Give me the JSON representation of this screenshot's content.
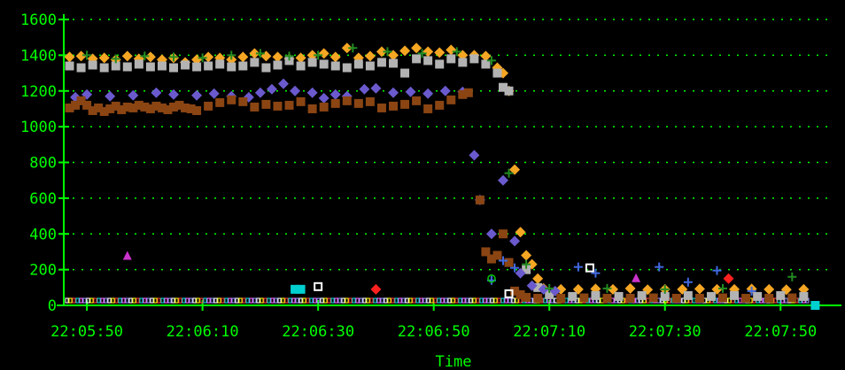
{
  "chart_data": {
    "type": "scatter",
    "title": "",
    "xlabel": "Time",
    "ylabel": "",
    "grid": true,
    "legend": "none",
    "colors": {
      "background": "#000000",
      "axis": "#00ff00",
      "grid": "#00ff00"
    },
    "ylim": [
      0,
      1600
    ],
    "yticks": [
      0,
      200,
      400,
      600,
      800,
      1000,
      1200,
      1400,
      1600
    ],
    "xlim": [
      "22:05:46",
      "22:07:59"
    ],
    "xticks": [
      "22:05:50",
      "22:06:10",
      "22:06:30",
      "22:06:50",
      "22:07:10",
      "22:07:30",
      "22:07:50"
    ],
    "series": [
      {
        "marker": "diamond",
        "color": "#f5a623",
        "points": [
          [
            "22:05:47",
            1390
          ],
          [
            "22:05:49",
            1395
          ],
          [
            "22:05:51",
            1380
          ],
          [
            "22:05:53",
            1385
          ],
          [
            "22:05:55",
            1375
          ],
          [
            "22:05:57",
            1395
          ],
          [
            "22:05:59",
            1380
          ],
          [
            "22:06:01",
            1390
          ],
          [
            "22:06:03",
            1375
          ],
          [
            "22:06:05",
            1385
          ],
          [
            "22:06:07",
            1360
          ],
          [
            "22:06:09",
            1375
          ],
          [
            "22:06:11",
            1390
          ],
          [
            "22:06:13",
            1385
          ],
          [
            "22:06:15",
            1375
          ],
          [
            "22:06:17",
            1390
          ],
          [
            "22:06:19",
            1410
          ],
          [
            "22:06:21",
            1395
          ],
          [
            "22:06:23",
            1390
          ],
          [
            "22:06:25",
            1380
          ],
          [
            "22:06:27",
            1385
          ],
          [
            "22:06:29",
            1400
          ],
          [
            "22:06:31",
            1410
          ],
          [
            "22:06:33",
            1390
          ],
          [
            "22:06:35",
            1440
          ],
          [
            "22:06:37",
            1385
          ],
          [
            "22:06:39",
            1395
          ],
          [
            "22:06:41",
            1420
          ],
          [
            "22:06:43",
            1400
          ],
          [
            "22:06:45",
            1425
          ],
          [
            "22:06:47",
            1440
          ],
          [
            "22:06:49",
            1420
          ],
          [
            "22:06:51",
            1415
          ],
          [
            "22:06:53",
            1430
          ],
          [
            "22:06:55",
            1400
          ],
          [
            "22:06:57",
            1400
          ],
          [
            "22:06:59",
            1395
          ],
          [
            "22:07:01",
            1330
          ],
          [
            "22:07:02",
            1300
          ],
          [
            "22:07:03",
            1200
          ],
          [
            "22:07:04",
            760
          ],
          [
            "22:07:05",
            410
          ],
          [
            "22:07:06",
            280
          ],
          [
            "22:07:07",
            230
          ],
          [
            "22:07:08",
            150
          ],
          [
            "22:07:09",
            95
          ],
          [
            "22:07:12",
            90
          ],
          [
            "22:07:15",
            90
          ],
          [
            "22:07:18",
            92
          ],
          [
            "22:07:21",
            90
          ],
          [
            "22:07:24",
            95
          ],
          [
            "22:07:27",
            88
          ],
          [
            "22:07:30",
            90
          ],
          [
            "22:07:33",
            90
          ],
          [
            "22:07:36",
            92
          ],
          [
            "22:07:39",
            90
          ],
          [
            "22:07:42",
            90
          ],
          [
            "22:07:45",
            92
          ],
          [
            "22:07:48",
            90
          ],
          [
            "22:07:51",
            88
          ],
          [
            "22:07:54",
            90
          ]
        ]
      },
      {
        "marker": "square",
        "color": "#b3b3b3",
        "points": [
          [
            "22:05:47",
            1340
          ],
          [
            "22:05:49",
            1330
          ],
          [
            "22:05:51",
            1345
          ],
          [
            "22:05:53",
            1330
          ],
          [
            "22:05:55",
            1340
          ],
          [
            "22:05:57",
            1335
          ],
          [
            "22:05:59",
            1350
          ],
          [
            "22:06:01",
            1335
          ],
          [
            "22:06:03",
            1340
          ],
          [
            "22:06:05",
            1330
          ],
          [
            "22:06:07",
            1345
          ],
          [
            "22:06:09",
            1335
          ],
          [
            "22:06:11",
            1340
          ],
          [
            "22:06:13",
            1350
          ],
          [
            "22:06:15",
            1335
          ],
          [
            "22:06:17",
            1340
          ],
          [
            "22:06:19",
            1360
          ],
          [
            "22:06:21",
            1330
          ],
          [
            "22:06:23",
            1345
          ],
          [
            "22:06:25",
            1370
          ],
          [
            "22:06:27",
            1340
          ],
          [
            "22:06:29",
            1360
          ],
          [
            "22:06:31",
            1350
          ],
          [
            "22:06:33",
            1340
          ],
          [
            "22:06:35",
            1330
          ],
          [
            "22:06:37",
            1350
          ],
          [
            "22:06:39",
            1340
          ],
          [
            "22:06:41",
            1360
          ],
          [
            "22:06:43",
            1355
          ],
          [
            "22:06:45",
            1300
          ],
          [
            "22:06:47",
            1380
          ],
          [
            "22:06:49",
            1370
          ],
          [
            "22:06:51",
            1350
          ],
          [
            "22:06:53",
            1380
          ],
          [
            "22:06:55",
            1360
          ],
          [
            "22:06:57",
            1380
          ],
          [
            "22:06:59",
            1350
          ],
          [
            "22:07:01",
            1300
          ],
          [
            "22:07:02",
            1220
          ],
          [
            "22:07:03",
            1200
          ],
          [
            "22:07:06",
            200
          ],
          [
            "22:07:08",
            100
          ],
          [
            "22:07:10",
            60
          ],
          [
            "22:07:14",
            50
          ],
          [
            "22:07:18",
            55
          ],
          [
            "22:07:22",
            50
          ],
          [
            "22:07:26",
            55
          ],
          [
            "22:07:30",
            50
          ],
          [
            "22:07:34",
            55
          ],
          [
            "22:07:38",
            50
          ],
          [
            "22:07:42",
            55
          ],
          [
            "22:07:46",
            50
          ],
          [
            "22:07:50",
            55
          ],
          [
            "22:07:54",
            50
          ]
        ]
      },
      {
        "marker": "diamond",
        "color": "#6a5acd",
        "points": [
          [
            "22:05:48",
            1165
          ],
          [
            "22:05:50",
            1180
          ],
          [
            "22:05:54",
            1170
          ],
          [
            "22:05:58",
            1175
          ],
          [
            "22:06:02",
            1190
          ],
          [
            "22:06:05",
            1180
          ],
          [
            "22:06:09",
            1175
          ],
          [
            "22:06:12",
            1185
          ],
          [
            "22:06:15",
            1170
          ],
          [
            "22:06:18",
            1165
          ],
          [
            "22:06:20",
            1190
          ],
          [
            "22:06:22",
            1210
          ],
          [
            "22:06:24",
            1240
          ],
          [
            "22:06:26",
            1200
          ],
          [
            "22:06:29",
            1190
          ],
          [
            "22:06:31",
            1160
          ],
          [
            "22:06:33",
            1180
          ],
          [
            "22:06:35",
            1170
          ],
          [
            "22:06:38",
            1210
          ],
          [
            "22:06:40",
            1215
          ],
          [
            "22:06:43",
            1190
          ],
          [
            "22:06:46",
            1195
          ],
          [
            "22:06:49",
            1185
          ],
          [
            "22:06:52",
            1200
          ],
          [
            "22:06:55",
            1195
          ],
          [
            "22:06:57",
            840
          ],
          [
            "22:06:58",
            590
          ],
          [
            "22:07:00",
            400
          ],
          [
            "22:07:02",
            700
          ],
          [
            "22:07:04",
            360
          ],
          [
            "22:07:05",
            180
          ],
          [
            "22:07:07",
            110
          ],
          [
            "22:07:09",
            90
          ],
          [
            "22:07:11",
            80
          ]
        ]
      },
      {
        "marker": "square",
        "color": "#8b4513",
        "points": [
          [
            "22:05:47",
            1105
          ],
          [
            "22:05:48",
            1120
          ],
          [
            "22:05:49",
            1145
          ],
          [
            "22:05:50",
            1120
          ],
          [
            "22:05:51",
            1090
          ],
          [
            "22:05:52",
            1105
          ],
          [
            "22:05:53",
            1085
          ],
          [
            "22:05:54",
            1100
          ],
          [
            "22:05:55",
            1115
          ],
          [
            "22:05:56",
            1095
          ],
          [
            "22:05:57",
            1110
          ],
          [
            "22:05:58",
            1105
          ],
          [
            "22:05:59",
            1120
          ],
          [
            "22:06:00",
            1110
          ],
          [
            "22:06:01",
            1100
          ],
          [
            "22:06:02",
            1115
          ],
          [
            "22:06:03",
            1105
          ],
          [
            "22:06:04",
            1095
          ],
          [
            "22:06:05",
            1110
          ],
          [
            "22:06:06",
            1120
          ],
          [
            "22:06:07",
            1105
          ],
          [
            "22:06:08",
            1100
          ],
          [
            "22:06:09",
            1090
          ],
          [
            "22:06:11",
            1115
          ],
          [
            "22:06:13",
            1135
          ],
          [
            "22:06:15",
            1150
          ],
          [
            "22:06:17",
            1140
          ],
          [
            "22:06:19",
            1110
          ],
          [
            "22:06:21",
            1125
          ],
          [
            "22:06:23",
            1115
          ],
          [
            "22:06:25",
            1120
          ],
          [
            "22:06:27",
            1140
          ],
          [
            "22:06:29",
            1100
          ],
          [
            "22:06:31",
            1110
          ],
          [
            "22:06:33",
            1130
          ],
          [
            "22:06:35",
            1145
          ],
          [
            "22:06:37",
            1130
          ],
          [
            "22:06:39",
            1140
          ],
          [
            "22:06:41",
            1105
          ],
          [
            "22:06:43",
            1115
          ],
          [
            "22:06:45",
            1125
          ],
          [
            "22:06:47",
            1145
          ],
          [
            "22:06:49",
            1100
          ],
          [
            "22:06:51",
            1120
          ],
          [
            "22:06:53",
            1150
          ],
          [
            "22:06:55",
            1180
          ],
          [
            "22:06:56",
            1190
          ],
          [
            "22:06:58",
            590
          ],
          [
            "22:06:59",
            300
          ],
          [
            "22:07:00",
            260
          ],
          [
            "22:07:01",
            280
          ],
          [
            "22:07:02",
            400
          ],
          [
            "22:07:03",
            240
          ],
          [
            "22:07:04",
            80
          ],
          [
            "22:07:05",
            60
          ],
          [
            "22:07:06",
            45
          ],
          [
            "22:07:08",
            40
          ],
          [
            "22:07:12",
            40
          ],
          [
            "22:07:16",
            42
          ],
          [
            "22:07:20",
            40
          ],
          [
            "22:07:24",
            40
          ],
          [
            "22:07:28",
            42
          ],
          [
            "22:07:32",
            40
          ],
          [
            "22:07:36",
            40
          ],
          [
            "22:07:40",
            42
          ],
          [
            "22:07:44",
            40
          ],
          [
            "22:07:48",
            40
          ],
          [
            "22:07:52",
            42
          ]
        ]
      },
      {
        "marker": "plus",
        "color": "#228b22",
        "points": [
          [
            "22:05:50",
            1400
          ],
          [
            "22:05:55",
            1380
          ],
          [
            "22:06:00",
            1395
          ],
          [
            "22:06:05",
            1390
          ],
          [
            "22:06:10",
            1385
          ],
          [
            "22:06:15",
            1400
          ],
          [
            "22:06:20",
            1410
          ],
          [
            "22:06:25",
            1395
          ],
          [
            "22:06:30",
            1400
          ],
          [
            "22:06:36",
            1440
          ],
          [
            "22:06:42",
            1420
          ],
          [
            "22:06:48",
            1410
          ],
          [
            "22:06:54",
            1420
          ],
          [
            "22:07:00",
            1370
          ],
          [
            "22:07:03",
            740
          ],
          [
            "22:07:06",
            230
          ],
          [
            "22:07:10",
            95
          ],
          [
            "22:07:20",
            95
          ],
          [
            "22:07:30",
            90
          ],
          [
            "22:07:40",
            95
          ],
          [
            "22:07:52",
            160
          ]
        ]
      },
      {
        "marker": "plus",
        "color": "#4169e1",
        "points": [
          [
            "22:07:00",
            140
          ],
          [
            "22:07:02",
            250
          ],
          [
            "22:07:04",
            210
          ],
          [
            "22:07:15",
            215
          ],
          [
            "22:07:18",
            180
          ],
          [
            "22:07:29",
            215
          ],
          [
            "22:07:34",
            130
          ],
          [
            "22:07:39",
            195
          ],
          [
            "22:07:45",
            80
          ]
        ]
      },
      {
        "marker": "triangle",
        "color": "#cc33cc",
        "points": [
          [
            "22:05:57",
            275
          ],
          [
            "22:07:25",
            150
          ]
        ]
      },
      {
        "marker": "diamond",
        "color": "#ff2020",
        "points": [
          [
            "22:06:40",
            90
          ],
          [
            "22:07:41",
            150
          ]
        ]
      },
      {
        "marker": "hollow-square",
        "color": "#ffffff",
        "points": [
          [
            "22:06:30",
            105
          ],
          [
            "22:07:17",
            210
          ],
          [
            "22:07:03",
            65
          ]
        ]
      },
      {
        "marker": "hollow-circle",
        "color": "#00cc00",
        "points": [
          [
            "22:07:00",
            150
          ]
        ]
      },
      {
        "marker": "square",
        "color": "#00d0d0",
        "points": [
          [
            "22:06:26",
            90
          ],
          [
            "22:06:27",
            90
          ],
          [
            "22:07:56",
            0
          ]
        ]
      }
    ]
  }
}
